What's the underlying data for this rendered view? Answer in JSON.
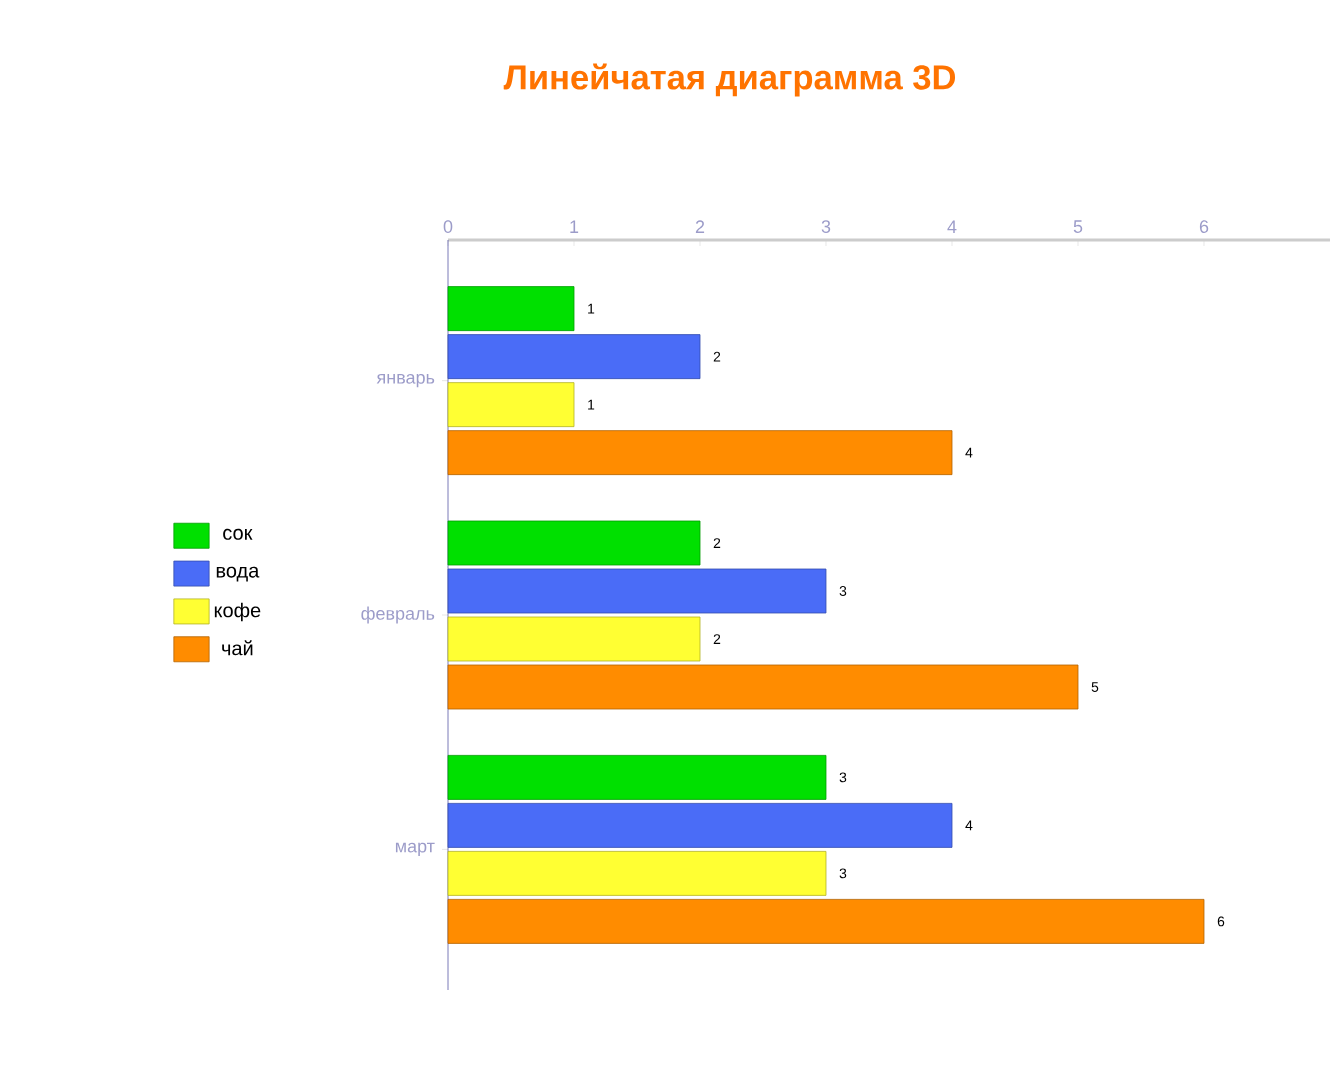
{
  "chart_data": {
    "type": "bar",
    "orientation": "horizontal",
    "title": "Линейчатая диаграмма 3D",
    "categories": [
      "январь",
      "февраль",
      "март"
    ],
    "series": [
      {
        "name": "сок",
        "color": "#00e000",
        "values": [
          1,
          2,
          3
        ]
      },
      {
        "name": "вода",
        "color": "#4a6cf7",
        "values": [
          2,
          3,
          4
        ]
      },
      {
        "name": "кофе",
        "color": "#ffff33",
        "values": [
          1,
          2,
          3
        ]
      },
      {
        "name": "чай",
        "color": "#ff8c00",
        "values": [
          4,
          5,
          6
        ]
      }
    ],
    "xlim": [
      0,
      7
    ],
    "xticks": [
      0,
      1,
      2,
      3,
      4,
      5,
      6
    ],
    "data_labels": true,
    "legend": "left",
    "grid": false
  }
}
